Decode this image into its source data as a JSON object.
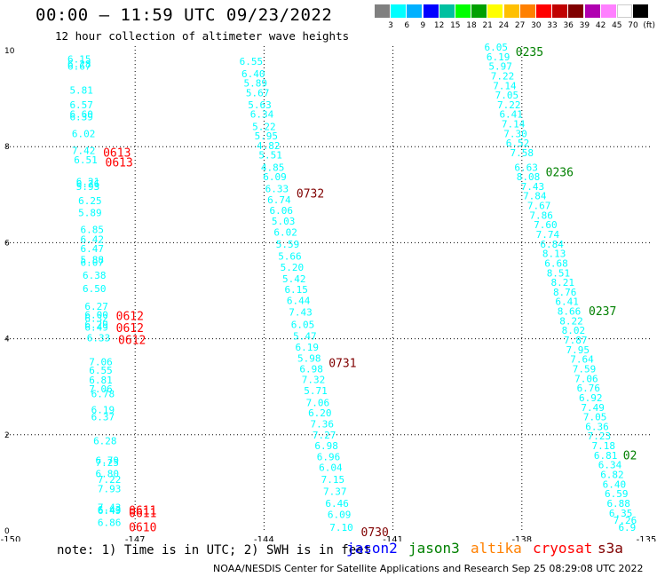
{
  "header": {
    "title": "00:00 – 11:59 UTC 09/23/2022",
    "subtitle": "12 hour collection of altimeter wave heights"
  },
  "color_scale": {
    "colors": [
      "#808080",
      "#00ffff",
      "#00b0ff",
      "#0000ff",
      "#00c0a0",
      "#00ff00",
      "#00a000",
      "#ffff00",
      "#ffc000",
      "#ff8000",
      "#ff0000",
      "#c00000",
      "#800000",
      "#b000b0",
      "#ff80ff",
      "#ffffff",
      "#000000"
    ],
    "labels": [
      "3",
      "6",
      "9",
      "12",
      "15",
      "18",
      "21",
      "24",
      "27",
      "30",
      "33",
      "36",
      "39",
      "42",
      "45",
      "70",
      "(ft)"
    ]
  },
  "map": {
    "x_tick_labels": [
      "-150",
      "-147",
      "-144",
      "-141",
      "-138",
      "-135"
    ],
    "y_tick_labels": [
      "0",
      "2",
      "4",
      "6",
      "8",
      "10"
    ]
  },
  "tracks": [
    {
      "satellite": "cryosat",
      "color": "#00ffff",
      "label_color": "#ff0000",
      "times": [
        {
          "text": "0613",
          "lat": 7.9
        },
        {
          "text": "0613",
          "lat": 7.7
        },
        {
          "text": "0612",
          "lat": 4.5
        },
        {
          "text": "0612",
          "lat": 4.25
        },
        {
          "text": "0612",
          "lat": 4.0
        },
        {
          "text": "0611",
          "lat": 0.45
        },
        {
          "text": "0611",
          "lat": 0.4
        },
        {
          "text": "0610",
          "lat": 0.1
        }
      ],
      "points": [
        {
          "lon": -148.3,
          "lat": 9.75,
          "value": "6.15"
        },
        {
          "lon": -148.3,
          "lat": 9.65,
          "value": "6.28"
        },
        {
          "lon": -148.3,
          "lat": 9.6,
          "value": "6.67"
        },
        {
          "lon": -148.25,
          "lat": 9.1,
          "value": "5.81"
        },
        {
          "lon": -148.25,
          "lat": 8.8,
          "value": "6.57"
        },
        {
          "lon": -148.25,
          "lat": 8.6,
          "value": "6.60"
        },
        {
          "lon": -148.25,
          "lat": 8.55,
          "value": "6.39"
        },
        {
          "lon": -148.2,
          "lat": 8.2,
          "value": "6.02"
        },
        {
          "lon": -148.2,
          "lat": 7.85,
          "value": "7.42"
        },
        {
          "lon": -148.15,
          "lat": 7.65,
          "value": "6.51"
        },
        {
          "lon": -148.1,
          "lat": 7.2,
          "value": "6.21"
        },
        {
          "lon": -148.1,
          "lat": 7.15,
          "value": "6.26"
        },
        {
          "lon": -148.1,
          "lat": 7.1,
          "value": "5.93"
        },
        {
          "lon": -148.05,
          "lat": 6.8,
          "value": "6.25"
        },
        {
          "lon": -148.05,
          "lat": 6.55,
          "value": "5.89"
        },
        {
          "lon": -148.0,
          "lat": 6.2,
          "value": "6.85"
        },
        {
          "lon": -148.0,
          "lat": 6.0,
          "value": "6.42"
        },
        {
          "lon": -148.0,
          "lat": 5.8,
          "value": "6.47"
        },
        {
          "lon": -148.0,
          "lat": 5.57,
          "value": "5.88"
        },
        {
          "lon": -148.0,
          "lat": 5.52,
          "value": "6.07"
        },
        {
          "lon": -147.95,
          "lat": 5.25,
          "value": "6.38"
        },
        {
          "lon": -147.95,
          "lat": 4.97,
          "value": "6.50"
        },
        {
          "lon": -147.9,
          "lat": 4.6,
          "value": "6.27"
        },
        {
          "lon": -147.9,
          "lat": 4.43,
          "value": "6.00"
        },
        {
          "lon": -147.9,
          "lat": 4.35,
          "value": "6.32"
        },
        {
          "lon": -147.9,
          "lat": 4.22,
          "value": "6.29"
        },
        {
          "lon": -147.9,
          "lat": 4.17,
          "value": "6.49"
        },
        {
          "lon": -147.85,
          "lat": 3.95,
          "value": "6.33"
        },
        {
          "lon": -147.8,
          "lat": 3.45,
          "value": "7.06"
        },
        {
          "lon": -147.8,
          "lat": 3.27,
          "value": "6.55"
        },
        {
          "lon": -147.8,
          "lat": 3.07,
          "value": "6.81"
        },
        {
          "lon": -147.8,
          "lat": 2.88,
          "value": "7.06"
        },
        {
          "lon": -147.75,
          "lat": 2.78,
          "value": "6.78"
        },
        {
          "lon": -147.75,
          "lat": 2.45,
          "value": "6.19"
        },
        {
          "lon": -147.75,
          "lat": 2.3,
          "value": "6.37"
        },
        {
          "lon": -147.7,
          "lat": 1.8,
          "value": "6.28"
        },
        {
          "lon": -147.65,
          "lat": 1.4,
          "value": "6.79"
        },
        {
          "lon": -147.65,
          "lat": 1.35,
          "value": "7.25"
        },
        {
          "lon": -147.65,
          "lat": 1.12,
          "value": "6.80"
        },
        {
          "lon": -147.6,
          "lat": 1.0,
          "value": "7.22"
        },
        {
          "lon": -147.6,
          "lat": 0.8,
          "value": "7.93"
        },
        {
          "lon": -147.6,
          "lat": 0.42,
          "value": "7.43"
        },
        {
          "lon": -147.6,
          "lat": 0.37,
          "value": "6.43"
        },
        {
          "lon": -147.6,
          "lat": 0.35,
          "value": "6.49"
        },
        {
          "lon": -147.6,
          "lat": 0.1,
          "value": "6.86"
        }
      ]
    },
    {
      "satellite": "s3a",
      "color": "#00ffff",
      "label_color": "#800000",
      "times": [
        {
          "text": "0732",
          "lat": 7.05
        },
        {
          "text": "0731",
          "lat": 3.52
        },
        {
          "text": "0730",
          "lat": 0.0
        }
      ],
      "points": [
        {
          "lon": -144.3,
          "lat": 9.7,
          "value": "6.55"
        },
        {
          "lon": -144.25,
          "lat": 9.45,
          "value": "6.40"
        },
        {
          "lon": -144.2,
          "lat": 9.25,
          "value": "5.89"
        },
        {
          "lon": -144.15,
          "lat": 9.05,
          "value": "5.67"
        },
        {
          "lon": -144.1,
          "lat": 8.8,
          "value": "5.63"
        },
        {
          "lon": -144.05,
          "lat": 8.6,
          "value": "6.34"
        },
        {
          "lon": -144.0,
          "lat": 8.35,
          "value": "5.22"
        },
        {
          "lon": -143.95,
          "lat": 8.15,
          "value": "5.95"
        },
        {
          "lon": -143.9,
          "lat": 7.95,
          "value": "4.82"
        },
        {
          "lon": -143.85,
          "lat": 7.75,
          "value": "5.51"
        },
        {
          "lon": -143.8,
          "lat": 7.5,
          "value": "4.85"
        },
        {
          "lon": -143.75,
          "lat": 7.3,
          "value": "6.09"
        },
        {
          "lon": -143.7,
          "lat": 7.05,
          "value": "6.33"
        },
        {
          "lon": -143.65,
          "lat": 6.82,
          "value": "6.74"
        },
        {
          "lon": -143.6,
          "lat": 6.6,
          "value": "6.06"
        },
        {
          "lon": -143.55,
          "lat": 6.38,
          "value": "5.03"
        },
        {
          "lon": -143.5,
          "lat": 6.15,
          "value": "6.02"
        },
        {
          "lon": -143.45,
          "lat": 5.9,
          "value": "5.59"
        },
        {
          "lon": -143.4,
          "lat": 5.65,
          "value": "5.66"
        },
        {
          "lon": -143.35,
          "lat": 5.42,
          "value": "5.20"
        },
        {
          "lon": -143.3,
          "lat": 5.18,
          "value": "5.42"
        },
        {
          "lon": -143.25,
          "lat": 4.95,
          "value": "6.15"
        },
        {
          "lon": -143.2,
          "lat": 4.72,
          "value": "6.44"
        },
        {
          "lon": -143.15,
          "lat": 4.48,
          "value": "7.43"
        },
        {
          "lon": -143.1,
          "lat": 4.22,
          "value": "6.05"
        },
        {
          "lon": -143.05,
          "lat": 3.98,
          "value": "5.47"
        },
        {
          "lon": -143.0,
          "lat": 3.75,
          "value": "6.19"
        },
        {
          "lon": -142.95,
          "lat": 3.52,
          "value": "5.98"
        },
        {
          "lon": -142.9,
          "lat": 3.3,
          "value": "6.98"
        },
        {
          "lon": -142.85,
          "lat": 3.08,
          "value": "7.32"
        },
        {
          "lon": -142.8,
          "lat": 2.85,
          "value": "5.71"
        },
        {
          "lon": -142.75,
          "lat": 2.6,
          "value": "7.06"
        },
        {
          "lon": -142.7,
          "lat": 2.38,
          "value": "6.20"
        },
        {
          "lon": -142.65,
          "lat": 2.15,
          "value": "7.36"
        },
        {
          "lon": -142.6,
          "lat": 1.92,
          "value": "7.27"
        },
        {
          "lon": -142.55,
          "lat": 1.7,
          "value": "6.98"
        },
        {
          "lon": -142.5,
          "lat": 1.47,
          "value": "6.96"
        },
        {
          "lon": -142.45,
          "lat": 1.25,
          "value": "6.04"
        },
        {
          "lon": -142.4,
          "lat": 1.0,
          "value": "7.15"
        },
        {
          "lon": -142.35,
          "lat": 0.75,
          "value": "7.37"
        },
        {
          "lon": -142.3,
          "lat": 0.5,
          "value": "6.46"
        },
        {
          "lon": -142.25,
          "lat": 0.27,
          "value": "6.09"
        },
        {
          "lon": -142.2,
          "lat": 0.0,
          "value": "7.10"
        }
      ]
    },
    {
      "satellite": "jason3",
      "color": "#00ffff",
      "label_color": "#008000",
      "times": [
        {
          "text": "0235",
          "lat": 10.0
        },
        {
          "text": "0236",
          "lat": 7.5
        },
        {
          "text": "0237",
          "lat": 4.6
        },
        {
          "text": "02",
          "lat": 1.6
        }
      ],
      "points": [
        {
          "lon": -138.6,
          "lat": 10.0,
          "value": "6.05"
        },
        {
          "lon": -138.55,
          "lat": 9.8,
          "value": "6.19"
        },
        {
          "lon": -138.5,
          "lat": 9.6,
          "value": "5.97"
        },
        {
          "lon": -138.45,
          "lat": 9.4,
          "value": "7.22"
        },
        {
          "lon": -138.4,
          "lat": 9.2,
          "value": "7.14"
        },
        {
          "lon": -138.35,
          "lat": 9.0,
          "value": "7.05"
        },
        {
          "lon": -138.3,
          "lat": 8.8,
          "value": "7.22"
        },
        {
          "lon": -138.25,
          "lat": 8.6,
          "value": "6.41"
        },
        {
          "lon": -138.2,
          "lat": 8.4,
          "value": "7.14"
        },
        {
          "lon": -138.15,
          "lat": 8.2,
          "value": "7.30"
        },
        {
          "lon": -138.1,
          "lat": 8.0,
          "value": "6.52"
        },
        {
          "lon": -138.0,
          "lat": 7.8,
          "value": "7.58"
        },
        {
          "lon": -137.9,
          "lat": 7.5,
          "value": "6.63"
        },
        {
          "lon": -137.85,
          "lat": 7.3,
          "value": "8.08"
        },
        {
          "lon": -137.75,
          "lat": 7.1,
          "value": "7.43"
        },
        {
          "lon": -137.7,
          "lat": 6.9,
          "value": "7.84"
        },
        {
          "lon": -137.6,
          "lat": 6.7,
          "value": "7.67"
        },
        {
          "lon": -137.55,
          "lat": 6.5,
          "value": "7.86"
        },
        {
          "lon": -137.45,
          "lat": 6.3,
          "value": "7.60"
        },
        {
          "lon": -137.4,
          "lat": 6.1,
          "value": "7.74"
        },
        {
          "lon": -137.3,
          "lat": 5.9,
          "value": "6.84"
        },
        {
          "lon": -137.25,
          "lat": 5.7,
          "value": "8.13"
        },
        {
          "lon": -137.2,
          "lat": 5.5,
          "value": "6.68"
        },
        {
          "lon": -137.15,
          "lat": 5.3,
          "value": "8.51"
        },
        {
          "lon": -137.05,
          "lat": 5.1,
          "value": "8.21"
        },
        {
          "lon": -137.0,
          "lat": 4.9,
          "value": "8.76"
        },
        {
          "lon": -136.95,
          "lat": 4.7,
          "value": "6.41"
        },
        {
          "lon": -136.9,
          "lat": 4.5,
          "value": "8.66"
        },
        {
          "lon": -136.85,
          "lat": 4.3,
          "value": "8.22"
        },
        {
          "lon": -136.8,
          "lat": 4.1,
          "value": "8.02"
        },
        {
          "lon": -136.75,
          "lat": 3.9,
          "value": "7.87"
        },
        {
          "lon": -136.7,
          "lat": 3.7,
          "value": "7.95"
        },
        {
          "lon": -136.6,
          "lat": 3.5,
          "value": "7.64"
        },
        {
          "lon": -136.55,
          "lat": 3.3,
          "value": "7.59"
        },
        {
          "lon": -136.5,
          "lat": 3.1,
          "value": "7.06"
        },
        {
          "lon": -136.45,
          "lat": 2.9,
          "value": "6.76"
        },
        {
          "lon": -136.4,
          "lat": 2.7,
          "value": "6.92"
        },
        {
          "lon": -136.35,
          "lat": 2.5,
          "value": "7.49"
        },
        {
          "lon": -136.3,
          "lat": 2.3,
          "value": "7.05"
        },
        {
          "lon": -136.25,
          "lat": 2.1,
          "value": "6.36"
        },
        {
          "lon": -136.2,
          "lat": 1.9,
          "value": "7.23"
        },
        {
          "lon": -136.1,
          "lat": 1.7,
          "value": "7.18"
        },
        {
          "lon": -136.05,
          "lat": 1.5,
          "value": "6.81"
        },
        {
          "lon": -135.95,
          "lat": 1.3,
          "value": "6.34"
        },
        {
          "lon": -135.9,
          "lat": 1.1,
          "value": "6.82"
        },
        {
          "lon": -135.85,
          "lat": 0.9,
          "value": "6.40"
        },
        {
          "lon": -135.8,
          "lat": 0.7,
          "value": "6.59"
        },
        {
          "lon": -135.75,
          "lat": 0.5,
          "value": "6.88"
        },
        {
          "lon": -135.7,
          "lat": 0.3,
          "value": "6.35"
        },
        {
          "lon": -135.6,
          "lat": 0.15,
          "value": "7.26"
        },
        {
          "lon": -135.55,
          "lat": 0.0,
          "value": "6.9"
        }
      ]
    }
  ],
  "footer": {
    "note": "note:  1) Time is in UTC;  2) SWH is in feet",
    "legend": [
      {
        "name": "jason2",
        "color": "#0000ff"
      },
      {
        "name": "jason3",
        "color": "#008000"
      },
      {
        "name": "altika",
        "color": "#ff8000"
      },
      {
        "name": "cryosat",
        "color": "#ff0000"
      },
      {
        "name": "s3a",
        "color": "#800000"
      }
    ],
    "credit": "NOAA/NESDIS Center for Satellite Applications and Research      Sep 25 08:29:08 UTC 2022"
  }
}
